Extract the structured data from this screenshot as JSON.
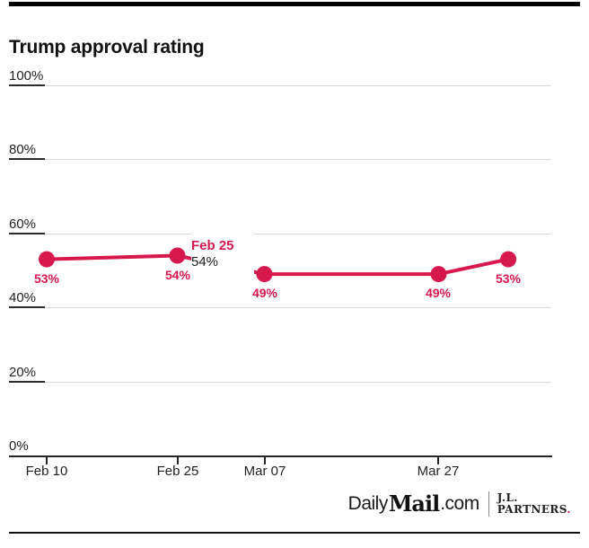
{
  "header": {
    "title": "Trump approval rating"
  },
  "chart_data": {
    "type": "line",
    "title": "Trump approval rating",
    "ylim": [
      0,
      100
    ],
    "grid": true,
    "color": "#d6184d",
    "y_ticks": [
      "100%",
      "80%",
      "60%",
      "40%",
      "20%",
      "0%"
    ],
    "y_tick_values": [
      100,
      80,
      60,
      40,
      20,
      0
    ],
    "x_ticks": [
      "Feb 10",
      "Feb 25",
      "Mar 07",
      "Mar 27"
    ],
    "x_tick_days": [
      0,
      15,
      25,
      45
    ],
    "series": [
      {
        "name": "Trump approval rating",
        "points": [
          {
            "date_label": "Feb 10",
            "x_days": 0,
            "value": 53,
            "label": "53%"
          },
          {
            "date_label": "Feb 25",
            "x_days": 15,
            "value": 54,
            "label": "54%"
          },
          {
            "date_label": "Mar 07",
            "x_days": 25,
            "value": 49,
            "label": "49%"
          },
          {
            "date_label": "Mar 27",
            "x_days": 45,
            "value": 49,
            "label": "49%"
          },
          {
            "date_label": "",
            "x_days": 53,
            "value": 53,
            "label": "53%"
          }
        ]
      }
    ],
    "tooltip": {
      "title": "Feb 25",
      "value": "54%"
    }
  },
  "footer": {
    "brand_daily": "Daily",
    "brand_mail": "Mail",
    "brand_dotcom": ".com",
    "partner_line1": "J.L.",
    "partner_line2": "PARTNERS",
    "partner_period": "."
  },
  "colors": {
    "accent": "#d6184d",
    "grid": "#d9d9d9",
    "axis": "#262626",
    "text": "#1f1f1f"
  }
}
